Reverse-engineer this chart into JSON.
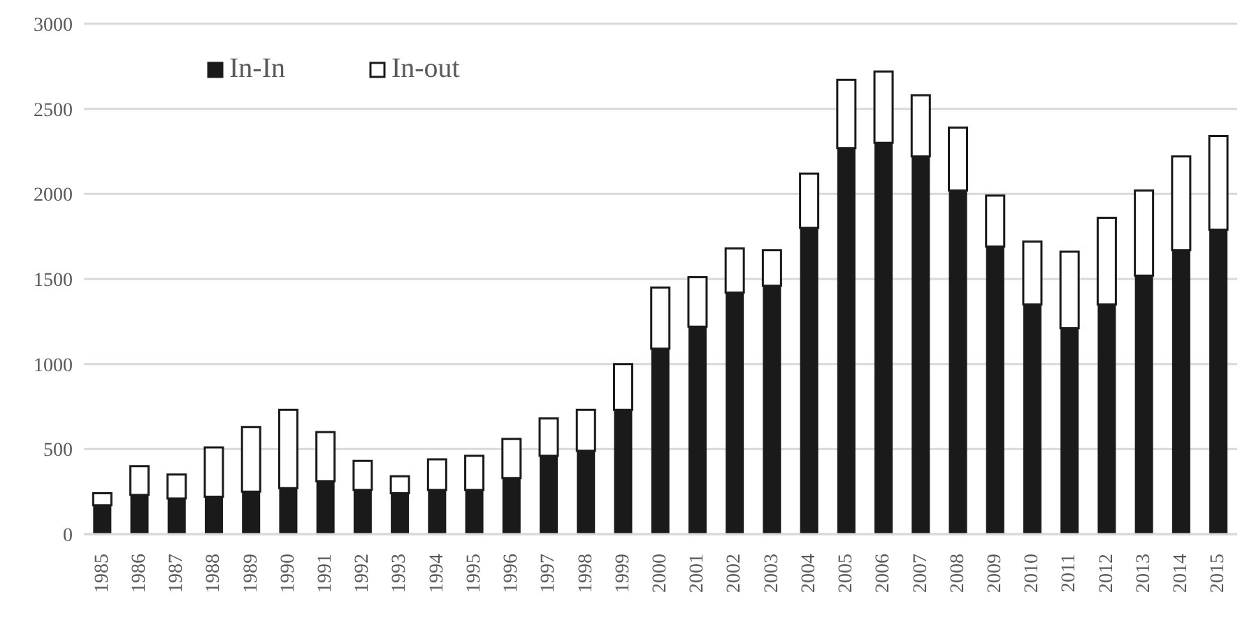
{
  "chart_data": {
    "type": "bar",
    "stacked": true,
    "categories": [
      "1985",
      "1986",
      "1987",
      "1988",
      "1989",
      "1990",
      "1991",
      "1992",
      "1993",
      "1994",
      "1995",
      "1996",
      "1997",
      "1998",
      "1999",
      "2000",
      "2001",
      "2002",
      "2003",
      "2004",
      "2005",
      "2006",
      "2007",
      "2008",
      "2009",
      "2010",
      "2011",
      "2012",
      "2013",
      "2014",
      "2015"
    ],
    "series": [
      {
        "name": "In-In",
        "color": "#1a1a1a",
        "values": [
          170,
          230,
          210,
          220,
          250,
          270,
          310,
          260,
          240,
          260,
          260,
          330,
          460,
          490,
          730,
          1090,
          1220,
          1420,
          1460,
          1800,
          2270,
          2300,
          2220,
          2020,
          1690,
          1350,
          1210,
          1350,
          1520,
          1670,
          1790
        ]
      },
      {
        "name": "In-out",
        "color": "#ffffff",
        "values": [
          70,
          170,
          140,
          290,
          380,
          460,
          290,
          170,
          100,
          180,
          200,
          230,
          220,
          240,
          270,
          360,
          290,
          260,
          210,
          320,
          400,
          420,
          360,
          370,
          300,
          370,
          450,
          510,
          500,
          550,
          550
        ]
      }
    ],
    "ylim": [
      0,
      3000
    ],
    "yticks": [
      0,
      500,
      1000,
      1500,
      2000,
      2500,
      3000
    ],
    "grid": "y",
    "legend": "top left"
  }
}
